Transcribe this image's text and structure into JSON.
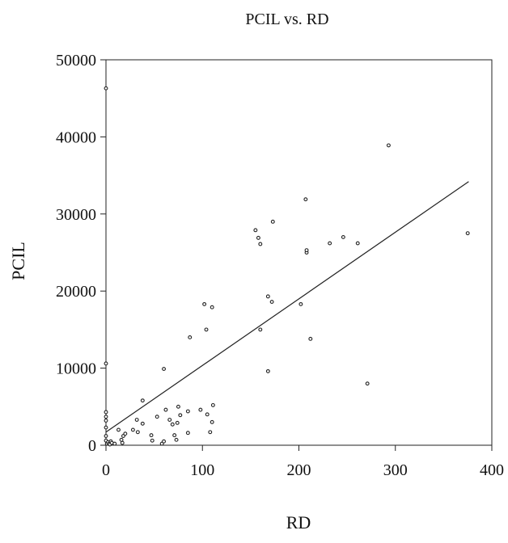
{
  "chart_data": {
    "type": "scatter",
    "title": "PCIL vs. RD",
    "xlabel": "RD",
    "ylabel": "PCIL",
    "xlim": [
      0,
      400
    ],
    "ylim": [
      0,
      50000
    ],
    "xticks": [
      "0",
      "100",
      "200",
      "300",
      "400"
    ],
    "yticks": [
      "0",
      "10000",
      "20000",
      "30000",
      "40000",
      "50000"
    ],
    "grid": false,
    "legend": "none",
    "fit_line": {
      "x": [
        0,
        376
      ],
      "y": [
        1700,
        34200
      ]
    },
    "points": [
      {
        "x": 0,
        "y": 46300
      },
      {
        "x": 0,
        "y": 10600
      },
      {
        "x": 0,
        "y": 4300
      },
      {
        "x": 0,
        "y": 3700
      },
      {
        "x": 0,
        "y": 3200
      },
      {
        "x": 0,
        "y": 2300
      },
      {
        "x": 0,
        "y": 1200
      },
      {
        "x": 0,
        "y": 600
      },
      {
        "x": 1,
        "y": 200
      },
      {
        "x": 2,
        "y": 400
      },
      {
        "x": 3,
        "y": 200
      },
      {
        "x": 4,
        "y": 100
      },
      {
        "x": 5,
        "y": 500
      },
      {
        "x": 6,
        "y": 300
      },
      {
        "x": 9,
        "y": 200
      },
      {
        "x": 13,
        "y": 2000
      },
      {
        "x": 16,
        "y": 700
      },
      {
        "x": 17,
        "y": 300
      },
      {
        "x": 18,
        "y": 1200
      },
      {
        "x": 20,
        "y": 1500
      },
      {
        "x": 28,
        "y": 2000
      },
      {
        "x": 32,
        "y": 3300
      },
      {
        "x": 33,
        "y": 1700
      },
      {
        "x": 38,
        "y": 2800
      },
      {
        "x": 38,
        "y": 5800
      },
      {
        "x": 47,
        "y": 1300
      },
      {
        "x": 48,
        "y": 600
      },
      {
        "x": 53,
        "y": 3700
      },
      {
        "x": 58,
        "y": 200
      },
      {
        "x": 60,
        "y": 500
      },
      {
        "x": 60,
        "y": 9900
      },
      {
        "x": 62,
        "y": 4600
      },
      {
        "x": 66,
        "y": 3300
      },
      {
        "x": 69,
        "y": 2700
      },
      {
        "x": 71,
        "y": 1300
      },
      {
        "x": 73,
        "y": 700
      },
      {
        "x": 74,
        "y": 2900
      },
      {
        "x": 75,
        "y": 5000
      },
      {
        "x": 77,
        "y": 3900
      },
      {
        "x": 85,
        "y": 1600
      },
      {
        "x": 85,
        "y": 4400
      },
      {
        "x": 87,
        "y": 14000
      },
      {
        "x": 98,
        "y": 4600
      },
      {
        "x": 102,
        "y": 18300
      },
      {
        "x": 104,
        "y": 15000
      },
      {
        "x": 105,
        "y": 4000
      },
      {
        "x": 108,
        "y": 1700
      },
      {
        "x": 110,
        "y": 3000
      },
      {
        "x": 110,
        "y": 17900
      },
      {
        "x": 111,
        "y": 5200
      },
      {
        "x": 155,
        "y": 27900
      },
      {
        "x": 158,
        "y": 26900
      },
      {
        "x": 160,
        "y": 15000
      },
      {
        "x": 160,
        "y": 26100
      },
      {
        "x": 168,
        "y": 9600
      },
      {
        "x": 168,
        "y": 19300
      },
      {
        "x": 172,
        "y": 18600
      },
      {
        "x": 173,
        "y": 29000
      },
      {
        "x": 202,
        "y": 18300
      },
      {
        "x": 207,
        "y": 31900
      },
      {
        "x": 208,
        "y": 25000
      },
      {
        "x": 208,
        "y": 25300
      },
      {
        "x": 212,
        "y": 13800
      },
      {
        "x": 232,
        "y": 26200
      },
      {
        "x": 246,
        "y": 27000
      },
      {
        "x": 261,
        "y": 26200
      },
      {
        "x": 271,
        "y": 8000
      },
      {
        "x": 293,
        "y": 38900
      },
      {
        "x": 375,
        "y": 27500
      }
    ]
  }
}
